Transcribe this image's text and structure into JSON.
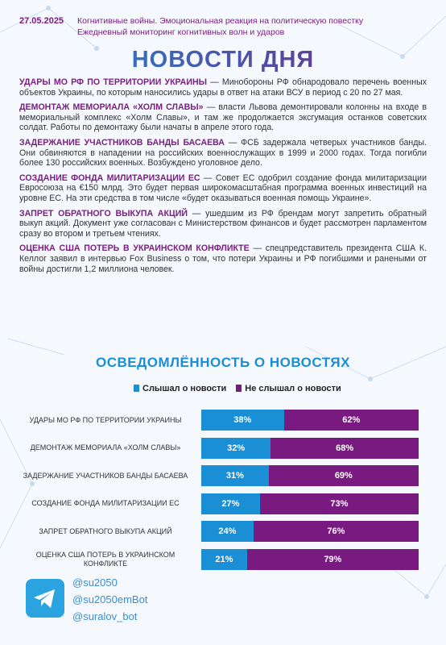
{
  "header": {
    "date": "27.05.2025",
    "line1": "Когнитивные войны. Эмоциональная реакция на политическую повестку",
    "line2": "Ежедневный мониторинг когнитивных волн и ударов",
    "title": "НОВОСТИ ДНЯ"
  },
  "news": [
    {
      "title": "УДАРЫ МО РФ ПО ТЕРРИТОРИИ УКРАИНЫ",
      "text": "— Минобороны РФ обнародовало перечень военных объектов Украины, по которым наносились удары в ответ на атаки ВСУ в период с 20 по 27 мая."
    },
    {
      "title": "ДЕМОНТАЖ МЕМОРИАЛА «ХОЛМ СЛАВЫ»",
      "text": "— власти Львова демонтировали колонны на входе в мемориальный комплекс «Холм Славы», и там же продолжается эксгумация останков советских солдат. Работы по демонтажу были начаты в апреле этого года."
    },
    {
      "title": "ЗАДЕРЖАНИЕ УЧАСТНИКОВ БАНДЫ БАСАЕВА",
      "text": "— ФСБ задержала четверых участников банды. Они обвиняются в нападении на российских военнослужащих в 1999 и 2000 годах. Тогда погибли более 130 российских военных. Возбуждено уголовное дело."
    },
    {
      "title": "СОЗДАНИЕ ФОНДА МИЛИТАРИЗАЦИИ ЕС",
      "text": "— Совет ЕС одобрил создание фонда милитаризации Евросоюза на €150 млрд. Это будет первая широкомасштабная программа военных инвестиций на уровне ЕС. На эти средства в том числе «будет оказываться военная помощь Украине»."
    },
    {
      "title": "ЗАПРЕТ ОБРАТНОГО ВЫКУПА АКЦИЙ",
      "text": "— ушедшим из РФ брендам могут запретить обратный выкуп акций. Документ уже согласован с Министерством финансов и будет рассмотрен парламентом сразу во втором и третьем чтениях."
    },
    {
      "title": "ОЦЕНКА США ПОТЕРЬ В УКРАИНСКОМ КОНФЛИКТЕ",
      "text": "— спецпредставитель президента США К. Келлог заявил в интервью Fox Business о том, что потери Украины и РФ погибшими и ранеными от войны достигли 1,2 миллиона человек."
    }
  ],
  "chart_data": {
    "type": "bar",
    "orientation": "horizontal",
    "stacked": true,
    "title": "ОСВЕДОМЛЁННОСТЬ О НОВОСТЯХ",
    "categories": [
      "УДАРЫ МО РФ ПО ТЕРРИТОРИИ УКРАИНЫ",
      "ДЕМОНТАЖ МЕМОРИАЛА «ХОЛМ СЛАВЫ»",
      "ЗАДЕРЖАНИЕ УЧАСТНИКОВ БАНДЫ БАСАЕВА",
      "СОЗДАНИЕ ФОНДА МИЛИТАРИЗАЦИИ ЕС",
      "ЗАПРЕТ ОБРАТНОГО ВЫКУПА АКЦИЙ",
      "ОЦЕНКА США ПОТЕРЬ В УКРАИНСКОМ КОНФЛИКТЕ"
    ],
    "series": [
      {
        "name": "Слышал о новости",
        "color": "#1a8fd6",
        "values": [
          38,
          32,
          31,
          27,
          24,
          21
        ],
        "value_labels": [
          "38%",
          "32%",
          "31%",
          "27%",
          "24%",
          "21%"
        ]
      },
      {
        "name": "Не слышал о новости",
        "color": "#781a80",
        "values": [
          62,
          68,
          69,
          73,
          76,
          79
        ],
        "value_labels": [
          "62%",
          "68%",
          "69%",
          "73%",
          "76%",
          "79%"
        ]
      }
    ]
  },
  "footer": {
    "handles": [
      "@su2050",
      "@su2050emBot",
      "@suralov_bot"
    ]
  }
}
